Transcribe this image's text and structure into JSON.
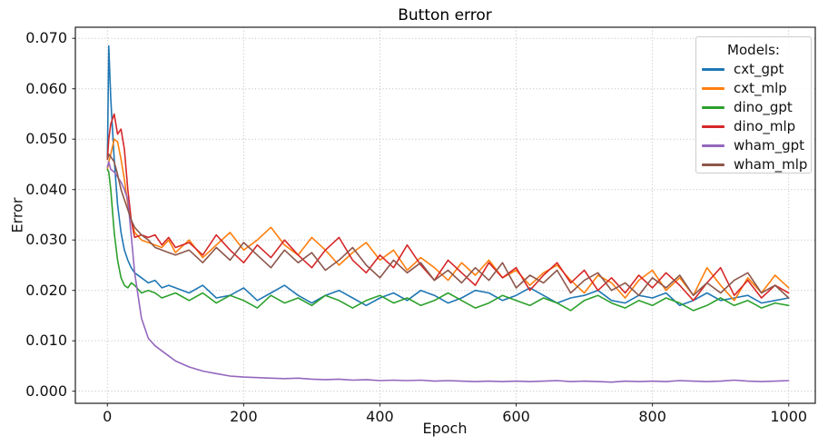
{
  "chart_data": {
    "type": "line",
    "title": "Button error",
    "xlabel": "Epoch",
    "ylabel": "Error",
    "xlim": [
      -47,
      1039
    ],
    "ylim": [
      -0.0024,
      0.0722
    ],
    "grid": true,
    "grid_style": "dotted",
    "grid_color": "#bcbcbc",
    "spine_color": "#1f1f1f",
    "tick_color": "#1f1f1f",
    "legend": {
      "title": "Models:",
      "position": "upper right"
    },
    "xticks": {
      "values": [
        0,
        200,
        400,
        600,
        800,
        1000
      ],
      "labels": [
        "0",
        "200",
        "400",
        "600",
        "800",
        "1000"
      ]
    },
    "yticks": {
      "values": [
        0.0,
        0.01,
        0.02,
        0.03,
        0.04,
        0.05,
        0.06,
        0.07
      ],
      "labels": [
        "0.000",
        "0.010",
        "0.020",
        "0.030",
        "0.040",
        "0.050",
        "0.060",
        "0.070"
      ]
    },
    "x": [
      0,
      2,
      5,
      10,
      15,
      20,
      25,
      30,
      35,
      40,
      50,
      60,
      70,
      80,
      90,
      100,
      120,
      140,
      160,
      180,
      200,
      220,
      240,
      260,
      280,
      300,
      320,
      340,
      360,
      380,
      400,
      420,
      440,
      460,
      480,
      500,
      520,
      540,
      560,
      580,
      600,
      620,
      640,
      660,
      680,
      700,
      720,
      740,
      760,
      780,
      800,
      820,
      840,
      860,
      880,
      900,
      920,
      940,
      960,
      980,
      1000
    ],
    "series": [
      {
        "name": "cxt_gpt",
        "color": "#1f77b4",
        "values": [
          0.046,
          0.0685,
          0.058,
          0.046,
          0.037,
          0.0315,
          0.028,
          0.026,
          0.0245,
          0.0235,
          0.0225,
          0.0215,
          0.022,
          0.0205,
          0.021,
          0.0205,
          0.0195,
          0.021,
          0.0185,
          0.019,
          0.0205,
          0.018,
          0.0195,
          0.021,
          0.019,
          0.0175,
          0.019,
          0.02,
          0.0185,
          0.017,
          0.0185,
          0.0195,
          0.018,
          0.02,
          0.019,
          0.0175,
          0.0185,
          0.02,
          0.0195,
          0.018,
          0.019,
          0.0205,
          0.019,
          0.0175,
          0.0185,
          0.019,
          0.02,
          0.018,
          0.0175,
          0.019,
          0.0185,
          0.0195,
          0.017,
          0.018,
          0.0195,
          0.018,
          0.0185,
          0.019,
          0.0175,
          0.018,
          0.0185
        ]
      },
      {
        "name": "cxt_mlp",
        "color": "#ff7f0e",
        "values": [
          0.044,
          0.0455,
          0.047,
          0.05,
          0.0495,
          0.046,
          0.042,
          0.037,
          0.034,
          0.0315,
          0.03,
          0.0295,
          0.029,
          0.0285,
          0.03,
          0.0275,
          0.03,
          0.0265,
          0.029,
          0.0315,
          0.028,
          0.03,
          0.0325,
          0.029,
          0.027,
          0.0305,
          0.028,
          0.025,
          0.0275,
          0.0295,
          0.026,
          0.028,
          0.024,
          0.0265,
          0.0245,
          0.022,
          0.0255,
          0.023,
          0.026,
          0.0225,
          0.024,
          0.021,
          0.0235,
          0.025,
          0.022,
          0.0195,
          0.023,
          0.0215,
          0.0185,
          0.022,
          0.024,
          0.02,
          0.0225,
          0.019,
          0.0245,
          0.021,
          0.018,
          0.0225,
          0.0195,
          0.023,
          0.0205
        ]
      },
      {
        "name": "dino_gpt",
        "color": "#2ca02c",
        "values": [
          0.044,
          0.0435,
          0.04,
          0.0315,
          0.026,
          0.0225,
          0.021,
          0.0205,
          0.0215,
          0.021,
          0.0195,
          0.02,
          0.0195,
          0.0185,
          0.019,
          0.0195,
          0.018,
          0.0195,
          0.0175,
          0.019,
          0.018,
          0.0165,
          0.019,
          0.0175,
          0.0185,
          0.017,
          0.019,
          0.018,
          0.0165,
          0.018,
          0.019,
          0.0175,
          0.0185,
          0.017,
          0.018,
          0.0195,
          0.018,
          0.0165,
          0.0175,
          0.019,
          0.018,
          0.017,
          0.0185,
          0.0175,
          0.016,
          0.018,
          0.019,
          0.0175,
          0.0165,
          0.018,
          0.017,
          0.0185,
          0.0175,
          0.016,
          0.017,
          0.0185,
          0.017,
          0.018,
          0.0165,
          0.0175,
          0.017
        ]
      },
      {
        "name": "dino_mlp",
        "color": "#d62728",
        "values": [
          0.046,
          0.05,
          0.053,
          0.055,
          0.051,
          0.052,
          0.048,
          0.04,
          0.034,
          0.0305,
          0.031,
          0.0305,
          0.031,
          0.029,
          0.0305,
          0.0285,
          0.0295,
          0.027,
          0.031,
          0.028,
          0.0255,
          0.029,
          0.0265,
          0.03,
          0.027,
          0.0245,
          0.028,
          0.0305,
          0.026,
          0.0235,
          0.027,
          0.0245,
          0.029,
          0.025,
          0.022,
          0.026,
          0.0235,
          0.021,
          0.0255,
          0.0225,
          0.0245,
          0.02,
          0.023,
          0.0255,
          0.0215,
          0.024,
          0.02,
          0.0225,
          0.0195,
          0.023,
          0.0205,
          0.0235,
          0.021,
          0.018,
          0.0215,
          0.0245,
          0.019,
          0.022,
          0.0185,
          0.021,
          0.0195
        ]
      },
      {
        "name": "wham_gpt",
        "color": "#9467bd",
        "values": [
          0.0445,
          0.0455,
          0.044,
          0.0435,
          0.0425,
          0.0415,
          0.04,
          0.038,
          0.031,
          0.0235,
          0.0145,
          0.0105,
          0.009,
          0.008,
          0.007,
          0.006,
          0.0048,
          0.004,
          0.0035,
          0.003,
          0.0028,
          0.0027,
          0.0026,
          0.0025,
          0.0026,
          0.0024,
          0.0023,
          0.0024,
          0.0022,
          0.0023,
          0.0021,
          0.0022,
          0.0021,
          0.0022,
          0.002,
          0.0021,
          0.002,
          0.0019,
          0.002,
          0.0019,
          0.002,
          0.0019,
          0.002,
          0.0021,
          0.0019,
          0.002,
          0.0019,
          0.0018,
          0.002,
          0.0019,
          0.002,
          0.0019,
          0.0021,
          0.002,
          0.0019,
          0.002,
          0.0022,
          0.002,
          0.0019,
          0.002,
          0.0021
        ]
      },
      {
        "name": "wham_mlp",
        "color": "#8c564b",
        "values": [
          0.046,
          0.047,
          0.0465,
          0.0455,
          0.043,
          0.04,
          0.038,
          0.036,
          0.034,
          0.0325,
          0.031,
          0.03,
          0.0285,
          0.028,
          0.0275,
          0.027,
          0.028,
          0.0255,
          0.0285,
          0.026,
          0.0295,
          0.027,
          0.0245,
          0.028,
          0.0255,
          0.0275,
          0.024,
          0.026,
          0.0285,
          0.025,
          0.0225,
          0.026,
          0.0235,
          0.0255,
          0.022,
          0.024,
          0.0215,
          0.0245,
          0.022,
          0.0255,
          0.0205,
          0.023,
          0.0215,
          0.024,
          0.0195,
          0.022,
          0.0235,
          0.02,
          0.0215,
          0.019,
          0.0225,
          0.0205,
          0.023,
          0.019,
          0.0215,
          0.0195,
          0.022,
          0.0235,
          0.0195,
          0.021,
          0.0185
        ]
      }
    ]
  }
}
